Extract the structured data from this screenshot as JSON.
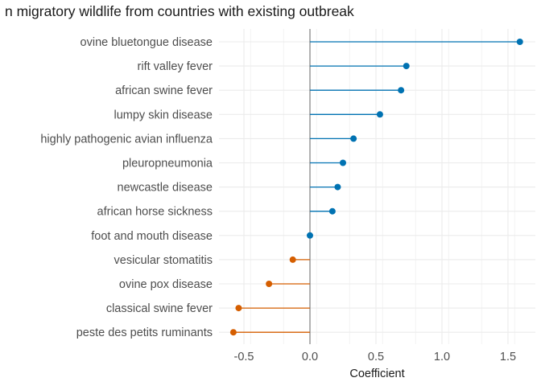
{
  "chart_data": {
    "type": "lollipop",
    "title": "n migratory wildlife from countries with existing outbreak",
    "xlabel": "Coefficient",
    "ylabel": "",
    "xlim": [
      -0.7,
      1.7
    ],
    "xticks": [
      "-0.5",
      "0.0",
      "0.5",
      "1.0",
      "1.5"
    ],
    "xtick_values": [
      -0.5,
      0.0,
      0.5,
      1.0,
      1.5
    ],
    "grid": true,
    "reference_line": 0,
    "colors": {
      "positive": "#0072B2",
      "negative": "#D55E00",
      "zero_line": "#808080",
      "grid": "#ebebeb"
    },
    "categories": [
      "ovine bluetongue disease",
      "rift valley fever",
      "african swine fever",
      "lumpy skin disease",
      "highly pathogenic avian influenza",
      "pleuropneumonia",
      "newcastle disease",
      "african horse sickness",
      "foot and mouth disease",
      "vesicular stomatitis",
      "ovine pox disease",
      "classical swine fever",
      "peste des petits ruminants"
    ],
    "values": [
      1.59,
      0.73,
      0.69,
      0.53,
      0.33,
      0.25,
      0.21,
      0.17,
      0.0,
      -0.13,
      -0.31,
      -0.54,
      -0.58
    ]
  }
}
